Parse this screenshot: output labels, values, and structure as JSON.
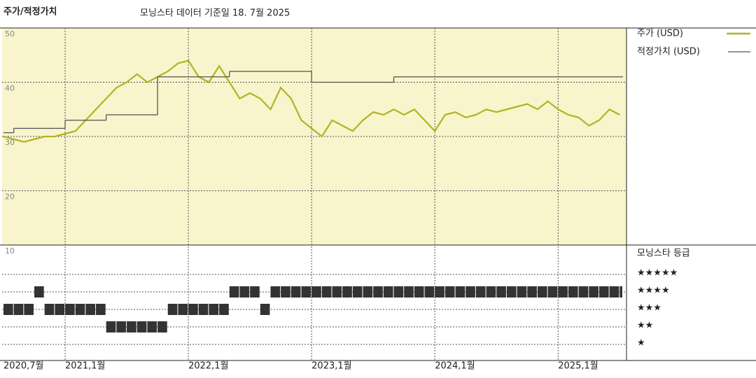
{
  "chart_data": [
    {
      "type": "line",
      "title": "주가/적정가치",
      "subtitle": "모닝스타 데이터 기준일 18. 7월 2025",
      "x": [
        "2020-07",
        "2020-08",
        "2020-09",
        "2020-10",
        "2020-11",
        "2020-12",
        "2021-01",
        "2021-02",
        "2021-03",
        "2021-04",
        "2021-05",
        "2021-06",
        "2021-07",
        "2021-08",
        "2021-09",
        "2021-10",
        "2021-11",
        "2021-12",
        "2022-01",
        "2022-02",
        "2022-03",
        "2022-04",
        "2022-05",
        "2022-06",
        "2022-07",
        "2022-08",
        "2022-09",
        "2022-10",
        "2022-11",
        "2022-12",
        "2023-01",
        "2023-02",
        "2023-03",
        "2023-04",
        "2023-05",
        "2023-06",
        "2023-07",
        "2023-08",
        "2023-09",
        "2023-10",
        "2023-11",
        "2023-12",
        "2024-01",
        "2024-02",
        "2024-03",
        "2024-04",
        "2024-05",
        "2024-06",
        "2024-07",
        "2024-08",
        "2024-09",
        "2024-10",
        "2024-11",
        "2024-12",
        "2025-01",
        "2025-02",
        "2025-03",
        "2025-04",
        "2025-05",
        "2025-06",
        "2025-07"
      ],
      "series": [
        {
          "name": "주가 (USD)",
          "color": "#b3b324",
          "values": [
            30,
            29.5,
            29,
            29.5,
            30,
            30,
            30.5,
            31,
            33,
            35,
            37,
            39,
            40,
            41.5,
            40,
            41,
            42,
            43.5,
            44,
            41,
            40,
            43,
            40,
            37,
            38,
            37,
            35,
            39,
            37,
            33,
            31.5,
            30,
            33,
            32,
            31,
            33,
            34.5,
            34,
            35,
            34,
            35,
            33,
            31,
            34,
            34.5,
            33.5,
            34,
            35,
            34.5,
            35,
            35.5,
            36,
            35,
            36.5,
            35,
            34,
            33.5,
            32,
            33,
            35,
            34
          ]
        },
        {
          "name": "적정가치 (USD)",
          "color": "#555555",
          "step": true,
          "values": [
            30.7,
            31.5,
            31.5,
            31.5,
            31.5,
            31.5,
            33,
            33,
            33,
            33,
            34,
            34,
            34,
            34,
            34,
            41,
            41,
            41,
            41,
            41,
            41,
            41,
            42,
            42,
            42,
            42,
            42,
            42,
            42,
            42,
            40,
            40,
            40,
            40,
            40,
            40,
            40,
            40,
            41,
            41,
            41,
            41,
            41,
            41,
            41,
            41,
            41,
            41,
            41,
            41,
            41,
            41,
            41,
            41,
            41,
            41,
            41,
            41,
            41,
            41,
            41
          ]
        }
      ],
      "xlim": [
        "2020-07",
        "2025-08"
      ],
      "xticks": [
        {
          "value": "2020-07",
          "label": "2020,7월"
        },
        {
          "value": "2021-01",
          "label": "2021,1월"
        },
        {
          "value": "2022-01",
          "label": "2022,1월"
        },
        {
          "value": "2023-01",
          "label": "2023,1월"
        },
        {
          "value": "2024-01",
          "label": "2024,1월"
        },
        {
          "value": "2025-01",
          "label": "2025,1월"
        }
      ],
      "ylim": [
        10,
        50
      ],
      "yticks": [
        10,
        20,
        30,
        40,
        50
      ],
      "grid": true,
      "background": "#f8f4cc"
    },
    {
      "type": "rating",
      "title": "모닝스타 등급",
      "categories": [
        "★",
        "★★",
        "★★★",
        "★★★★",
        "★★★★★"
      ],
      "x": [
        "2020-07",
        "2020-08",
        "2020-09",
        "2020-10",
        "2020-11",
        "2020-12",
        "2021-01",
        "2021-02",
        "2021-03",
        "2021-04",
        "2021-05",
        "2021-06",
        "2021-07",
        "2021-08",
        "2021-09",
        "2021-10",
        "2021-11",
        "2021-12",
        "2022-01",
        "2022-02",
        "2022-03",
        "2022-04",
        "2022-05",
        "2022-06",
        "2022-07",
        "2022-08",
        "2022-09",
        "2022-10",
        "2022-11",
        "2022-12",
        "2023-01",
        "2023-02",
        "2023-03",
        "2023-04",
        "2023-05",
        "2023-06",
        "2023-07",
        "2023-08",
        "2023-09",
        "2023-10",
        "2023-11",
        "2023-12",
        "2024-01",
        "2024-02",
        "2024-03",
        "2024-04",
        "2024-05",
        "2024-06",
        "2024-07",
        "2024-08",
        "2024-09",
        "2024-10",
        "2024-11",
        "2024-12",
        "2025-01",
        "2025-02",
        "2025-03",
        "2025-04",
        "2025-05",
        "2025-06",
        "2025-07"
      ],
      "values": [
        3,
        3,
        3,
        4,
        3,
        3,
        3,
        3,
        3,
        3,
        2,
        2,
        2,
        2,
        2,
        2,
        3,
        3,
        3,
        3,
        3,
        3,
        4,
        4,
        4,
        3,
        4,
        4,
        4,
        4,
        4,
        4,
        4,
        4,
        4,
        4,
        4,
        4,
        4,
        4,
        4,
        4,
        4,
        4,
        4,
        4,
        4,
        4,
        4,
        4,
        4,
        4,
        4,
        4,
        4,
        4,
        4,
        4,
        4,
        4,
        4
      ],
      "ylim": [
        0,
        6
      ],
      "color": "#333333"
    }
  ]
}
